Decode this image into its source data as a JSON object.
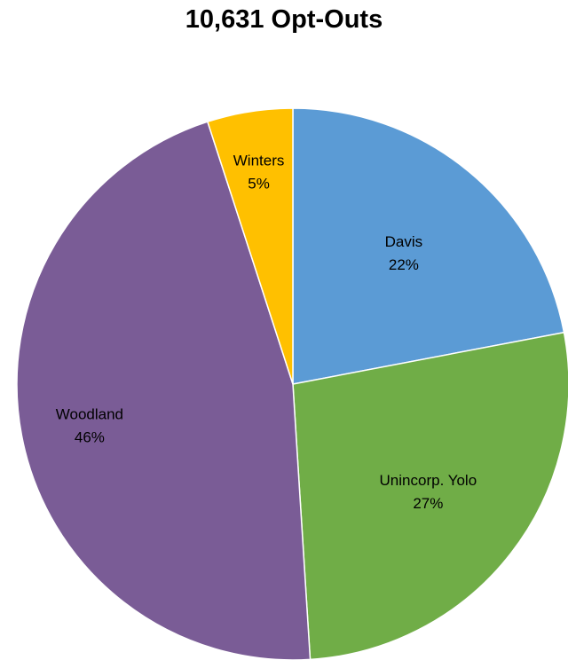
{
  "chart_data": {
    "type": "pie",
    "title": "10,631 Opt-Outs",
    "slices": [
      {
        "name": "Davis",
        "percent_label": "22%",
        "value": 22,
        "color": "#5B9BD5"
      },
      {
        "name": "Unincorp. Yolo",
        "percent_label": "27%",
        "value": 27,
        "color": "#70AD47"
      },
      {
        "name": "Woodland",
        "percent_label": "46%",
        "value": 46,
        "color": "#7A5C96"
      },
      {
        "name": "Winters",
        "percent_label": "5%",
        "value": 5,
        "color": "#FFC000"
      }
    ],
    "legend": "none",
    "labels": "inside"
  }
}
